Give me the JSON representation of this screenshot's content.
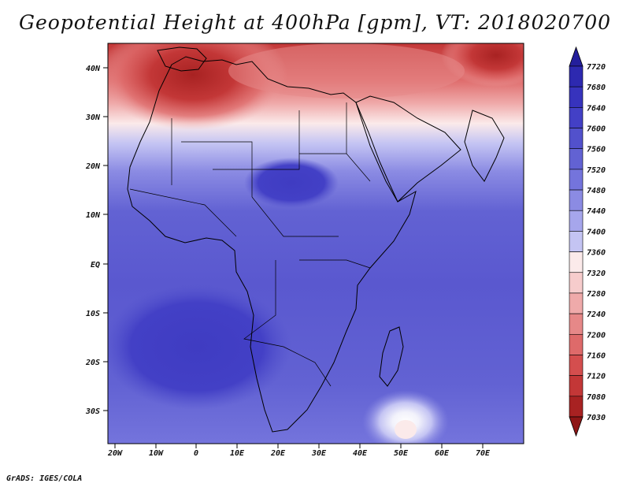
{
  "title": "Geopotential Height at 400hPa [gpm], VT: 2018020700",
  "credit": "GrADS: IGES/COLA",
  "map": {
    "lat_labels": [
      "40N",
      "30N",
      "20N",
      "10N",
      "EQ",
      "10S",
      "20S",
      "30S"
    ],
    "lon_labels": [
      "20W",
      "10W",
      "0",
      "10E",
      "20E",
      "30E",
      "40E",
      "50E",
      "60E",
      "70E"
    ]
  },
  "colorbar": {
    "levels": [
      "7720",
      "7680",
      "7640",
      "7600",
      "7560",
      "7520",
      "7480",
      "7440",
      "7400",
      "7360",
      "7320",
      "7280",
      "7240",
      "7200",
      "7160",
      "7120",
      "7080",
      "7030"
    ],
    "colors": [
      "#241f9c",
      "#2d29b0",
      "#3733bd",
      "#4340c6",
      "#5251cc",
      "#6262d3",
      "#7474dc",
      "#8b8be3",
      "#a6a6ec",
      "#c4c4f3",
      "#fbeaea",
      "#f6cccc",
      "#efaaaa",
      "#e68888",
      "#de6a6a",
      "#d44e4e",
      "#c33737",
      "#a82222",
      "#8e1616"
    ]
  }
}
